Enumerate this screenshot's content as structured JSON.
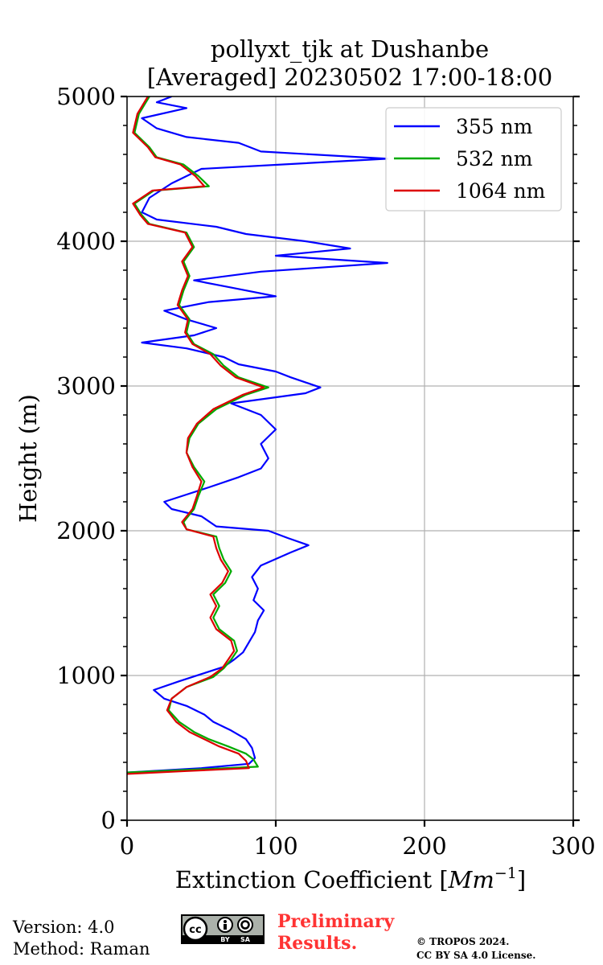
{
  "chart_data": {
    "type": "line",
    "title_line1": "pollyxt_tjk at Dushanbe",
    "title_line2": "[Averaged] 20230502 17:00-18:00",
    "xlabel_text": "Extinction Coefficient [",
    "xlabel_unit": "Mm",
    "xlabel_exp": "−1",
    "xlabel_close": "]",
    "ylabel": "Height (m)",
    "xlim": [
      0,
      300
    ],
    "ylim": [
      0,
      5000
    ],
    "xticks": [
      0,
      100,
      200,
      300
    ],
    "yticks": [
      0,
      1000,
      2000,
      3000,
      4000,
      5000
    ],
    "grid": true,
    "legend_position": "top-right",
    "series": [
      {
        "name": "355 nm",
        "color": "#0000ff",
        "points": [
          [
            0,
            330
          ],
          [
            50,
            360
          ],
          [
            82,
            390
          ],
          [
            86,
            430
          ],
          [
            84,
            500
          ],
          [
            80,
            560
          ],
          [
            70,
            620
          ],
          [
            58,
            680
          ],
          [
            52,
            730
          ],
          [
            40,
            790
          ],
          [
            25,
            840
          ],
          [
            18,
            900
          ],
          [
            35,
            960
          ],
          [
            50,
            1010
          ],
          [
            65,
            1060
          ],
          [
            72,
            1110
          ],
          [
            78,
            1160
          ],
          [
            82,
            1230
          ],
          [
            86,
            1300
          ],
          [
            88,
            1380
          ],
          [
            92,
            1450
          ],
          [
            85,
            1520
          ],
          [
            88,
            1600
          ],
          [
            84,
            1680
          ],
          [
            90,
            1760
          ],
          [
            110,
            1850
          ],
          [
            122,
            1900
          ],
          [
            108,
            1950
          ],
          [
            95,
            2000
          ],
          [
            60,
            2030
          ],
          [
            50,
            2100
          ],
          [
            30,
            2150
          ],
          [
            25,
            2200
          ],
          [
            40,
            2250
          ],
          [
            55,
            2300
          ],
          [
            75,
            2370
          ],
          [
            90,
            2430
          ],
          [
            95,
            2500
          ],
          [
            90,
            2600
          ],
          [
            100,
            2700
          ],
          [
            90,
            2800
          ],
          [
            70,
            2880
          ],
          [
            120,
            2950
          ],
          [
            130,
            2990
          ],
          [
            110,
            3060
          ],
          [
            100,
            3100
          ],
          [
            75,
            3150
          ],
          [
            65,
            3200
          ],
          [
            40,
            3260
          ],
          [
            10,
            3300
          ],
          [
            45,
            3350
          ],
          [
            60,
            3400
          ],
          [
            40,
            3460
          ],
          [
            25,
            3520
          ],
          [
            55,
            3580
          ],
          [
            100,
            3620
          ],
          [
            70,
            3680
          ],
          [
            45,
            3730
          ],
          [
            90,
            3790
          ],
          [
            175,
            3850
          ],
          [
            100,
            3900
          ],
          [
            150,
            3950
          ],
          [
            120,
            4000
          ],
          [
            80,
            4050
          ],
          [
            60,
            4100
          ],
          [
            20,
            4150
          ],
          [
            10,
            4200
          ],
          [
            15,
            4300
          ],
          [
            30,
            4400
          ],
          [
            50,
            4500
          ],
          [
            175,
            4570
          ],
          [
            90,
            4620
          ],
          [
            75,
            4680
          ],
          [
            40,
            4720
          ],
          [
            20,
            4780
          ],
          [
            10,
            4850
          ],
          [
            40,
            4920
          ],
          [
            20,
            4960
          ],
          [
            30,
            5000
          ]
        ]
      },
      {
        "name": "532 nm",
        "color": "#00aa00",
        "points": [
          [
            0,
            330
          ],
          [
            45,
            350
          ],
          [
            88,
            370
          ],
          [
            85,
            420
          ],
          [
            80,
            460
          ],
          [
            68,
            510
          ],
          [
            55,
            560
          ],
          [
            45,
            610
          ],
          [
            35,
            680
          ],
          [
            28,
            760
          ],
          [
            30,
            840
          ],
          [
            40,
            920
          ],
          [
            58,
            990
          ],
          [
            65,
            1050
          ],
          [
            70,
            1110
          ],
          [
            74,
            1170
          ],
          [
            72,
            1240
          ],
          [
            62,
            1320
          ],
          [
            58,
            1400
          ],
          [
            62,
            1480
          ],
          [
            58,
            1560
          ],
          [
            66,
            1640
          ],
          [
            70,
            1720
          ],
          [
            65,
            1800
          ],
          [
            62,
            1880
          ],
          [
            60,
            1960
          ],
          [
            40,
            2010
          ],
          [
            38,
            2060
          ],
          [
            45,
            2150
          ],
          [
            48,
            2240
          ],
          [
            52,
            2340
          ],
          [
            45,
            2440
          ],
          [
            40,
            2540
          ],
          [
            42,
            2640
          ],
          [
            48,
            2740
          ],
          [
            60,
            2840
          ],
          [
            80,
            2940
          ],
          [
            95,
            2990
          ],
          [
            75,
            3060
          ],
          [
            65,
            3140
          ],
          [
            58,
            3220
          ],
          [
            45,
            3290
          ],
          [
            40,
            3370
          ],
          [
            42,
            3460
          ],
          [
            35,
            3560
          ],
          [
            38,
            3660
          ],
          [
            42,
            3760
          ],
          [
            38,
            3860
          ],
          [
            45,
            3960
          ],
          [
            40,
            4060
          ],
          [
            15,
            4120
          ],
          [
            10,
            4180
          ],
          [
            5,
            4260
          ],
          [
            18,
            4350
          ],
          [
            55,
            4380
          ],
          [
            48,
            4450
          ],
          [
            38,
            4530
          ],
          [
            20,
            4580
          ],
          [
            15,
            4650
          ],
          [
            5,
            4750
          ],
          [
            8,
            4880
          ],
          [
            15,
            5000
          ]
        ]
      },
      {
        "name": "1064 nm",
        "color": "#dd0000",
        "points": [
          [
            0,
            320
          ],
          [
            40,
            340
          ],
          [
            82,
            360
          ],
          [
            80,
            410
          ],
          [
            75,
            460
          ],
          [
            62,
            510
          ],
          [
            52,
            560
          ],
          [
            42,
            610
          ],
          [
            33,
            680
          ],
          [
            27,
            760
          ],
          [
            30,
            840
          ],
          [
            40,
            920
          ],
          [
            56,
            990
          ],
          [
            64,
            1050
          ],
          [
            68,
            1110
          ],
          [
            72,
            1170
          ],
          [
            70,
            1240
          ],
          [
            60,
            1320
          ],
          [
            56,
            1400
          ],
          [
            60,
            1480
          ],
          [
            56,
            1560
          ],
          [
            64,
            1640
          ],
          [
            68,
            1720
          ],
          [
            63,
            1800
          ],
          [
            60,
            1880
          ],
          [
            58,
            1960
          ],
          [
            40,
            2010
          ],
          [
            37,
            2060
          ],
          [
            44,
            2150
          ],
          [
            47,
            2240
          ],
          [
            50,
            2340
          ],
          [
            44,
            2440
          ],
          [
            40,
            2540
          ],
          [
            41,
            2640
          ],
          [
            47,
            2740
          ],
          [
            58,
            2840
          ],
          [
            78,
            2940
          ],
          [
            92,
            2990
          ],
          [
            73,
            3060
          ],
          [
            63,
            3140
          ],
          [
            56,
            3220
          ],
          [
            44,
            3290
          ],
          [
            39,
            3370
          ],
          [
            41,
            3460
          ],
          [
            34,
            3560
          ],
          [
            37,
            3660
          ],
          [
            41,
            3760
          ],
          [
            37,
            3860
          ],
          [
            44,
            3960
          ],
          [
            39,
            4060
          ],
          [
            14,
            4120
          ],
          [
            9,
            4180
          ],
          [
            4,
            4260
          ],
          [
            17,
            4350
          ],
          [
            52,
            4380
          ],
          [
            46,
            4450
          ],
          [
            36,
            4530
          ],
          [
            19,
            4580
          ],
          [
            14,
            4650
          ],
          [
            4,
            4750
          ],
          [
            7,
            4880
          ],
          [
            14,
            5000
          ]
        ]
      }
    ]
  },
  "footer": {
    "version": "Version: 4.0",
    "method": "Method: Raman",
    "preliminary_line1": "Preliminary",
    "preliminary_line2": "Results.",
    "copyright_line1": "© TROPOS 2024.",
    "copyright_line2": "CC BY SA 4.0 License.",
    "license_badge_cc": "cc",
    "license_badge_by": "BY",
    "license_badge_sa": "SA"
  }
}
